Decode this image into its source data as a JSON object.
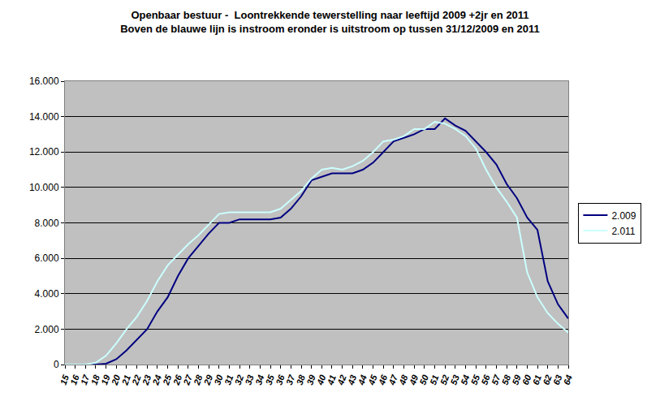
{
  "chart_data": {
    "type": "line",
    "title": "Openbaar bestuur -  Loontrekkende tewerstelling naar leeftijd 2009 +2jr en 2011",
    "subtitle": "Boven de blauwe lijn is instroom eronder is uitstroom op tussen 31/12/2009 en 2011",
    "categories": [
      "15",
      "16",
      "17",
      "18",
      "19",
      "20",
      "21",
      "22",
      "23",
      "24",
      "25",
      "26",
      "27",
      "28",
      "29",
      "30",
      "31",
      "32",
      "33",
      "34",
      "35",
      "36",
      "37",
      "38",
      "39",
      "40",
      "41",
      "42",
      "43",
      "44",
      "45",
      "46",
      "47",
      "48",
      "49",
      "50",
      "51",
      "52",
      "53",
      "54",
      "55",
      "56",
      "57",
      "58",
      "59",
      "60",
      "61",
      "62",
      "63",
      "64"
    ],
    "series": [
      {
        "name": "2.009",
        "color": "#000080",
        "values": [
          0,
          0,
          0,
          0,
          50,
          300,
          800,
          1400,
          2000,
          3000,
          3800,
          5000,
          6000,
          6700,
          7400,
          8000,
          8000,
          8200,
          8200,
          8200,
          8200,
          8300,
          8800,
          9500,
          10400,
          10600,
          10800,
          10800,
          10800,
          11000,
          11400,
          12000,
          12600,
          12800,
          13000,
          13300,
          13300,
          13900,
          13500,
          13200,
          12600,
          12000,
          11300,
          10200,
          9400,
          8300,
          7600,
          4700,
          3400,
          2600
        ]
      },
      {
        "name": "2.011",
        "color": "#ccffff",
        "values": [
          0,
          0,
          0,
          100,
          500,
          1200,
          2000,
          2700,
          3600,
          4700,
          5600,
          6200,
          6800,
          7300,
          7900,
          8500,
          8600,
          8600,
          8600,
          8600,
          8600,
          8800,
          9300,
          9800,
          10500,
          11000,
          11100,
          11000,
          11200,
          11500,
          12000,
          12600,
          12700,
          12900,
          13300,
          13300,
          13700,
          13600,
          13300,
          12900,
          12200,
          11000,
          10000,
          9200,
          8300,
          5200,
          3800,
          2900,
          2300,
          1800
        ]
      }
    ],
    "ylim": [
      0,
      16000
    ],
    "yticks": [
      0,
      {
        "value": 2000,
        "label": "2.000"
      },
      {
        "value": 4000,
        "label": "4.000"
      },
      {
        "value": 6000,
        "label": "6.000"
      },
      {
        "value": 8000,
        "label": "8.000"
      },
      {
        "value": 10000,
        "label": "10.000"
      },
      {
        "value": 12000,
        "label": "12.000"
      },
      {
        "value": 14000,
        "label": "14.000"
      },
      {
        "value": 16000,
        "label": "16.000"
      }
    ],
    "grid": true,
    "legend": "right"
  }
}
